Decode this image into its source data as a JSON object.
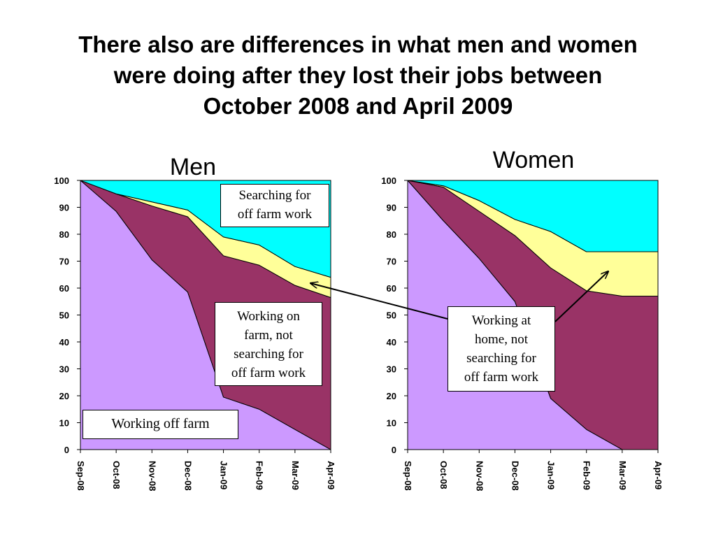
{
  "slide_title": {
    "lines": [
      "There also are differences in what men and women",
      "were doing after they lost their jobs between",
      "October 2008 and April 2009"
    ]
  },
  "colors": {
    "working_off_farm": "#cc99ff",
    "working_on_farm_or_home": "#993366",
    "other": "#ffff99",
    "searching": "#00ffff"
  },
  "chart_data": [
    {
      "type": "area",
      "stacked": true,
      "title": "Men",
      "x": [
        "Sep-08",
        "Oct-08",
        "Nov-08",
        "Dec-08",
        "Jan-09",
        "Feb-09",
        "Mar-09",
        "Apr-09"
      ],
      "yticks": [
        0,
        10,
        20,
        30,
        40,
        50,
        60,
        70,
        80,
        90,
        100
      ],
      "ylim": [
        0,
        100
      ],
      "series": [
        {
          "key": "working_off_farm",
          "values": [
            100,
            88.5,
            70.5,
            58.5,
            19.5,
            15,
            7.5,
            0
          ]
        },
        {
          "key": "working_on_farm_or_home",
          "values": [
            0,
            6.5,
            20,
            28,
            52.5,
            53.5,
            53.5,
            56.5
          ]
        },
        {
          "key": "other",
          "values": [
            0,
            0,
            1.5,
            2.5,
            7,
            7.5,
            7,
            7.5
          ]
        },
        {
          "key": "searching",
          "values": [
            0,
            5,
            8,
            11,
            21,
            24,
            32,
            36
          ]
        }
      ]
    },
    {
      "type": "area",
      "stacked": true,
      "title": "Women",
      "x": [
        "Sep-08",
        "Oct-08",
        "Nov-08",
        "Dec-08",
        "Jan-09",
        "Feb-09",
        "Mar-09",
        "Apr-09"
      ],
      "yticks": [
        0,
        10,
        20,
        30,
        40,
        50,
        60,
        70,
        80,
        90,
        100
      ],
      "ylim": [
        0,
        100
      ],
      "series": [
        {
          "key": "working_off_farm",
          "values": [
            100,
            85,
            71,
            55,
            19,
            7.5,
            0,
            0
          ]
        },
        {
          "key": "working_on_farm_or_home",
          "values": [
            0,
            12.5,
            17.5,
            24.5,
            48.5,
            51.5,
            57,
            57
          ]
        },
        {
          "key": "other",
          "values": [
            0,
            0.5,
            4,
            6,
            13.5,
            14.5,
            16.5,
            16.5
          ]
        },
        {
          "key": "searching",
          "values": [
            0,
            2,
            7.5,
            14.5,
            19,
            26.5,
            26.5,
            26.5
          ]
        }
      ]
    }
  ],
  "annotations": {
    "searching": [
      "Searching for",
      "off farm work"
    ],
    "working_on_farm": [
      "Working on",
      "farm, not",
      "searching for",
      "off farm work"
    ],
    "working_off_farm": [
      "Working off farm"
    ],
    "working_at_home": [
      "Working at",
      "home, not",
      "searching for",
      "off farm work"
    ]
  }
}
